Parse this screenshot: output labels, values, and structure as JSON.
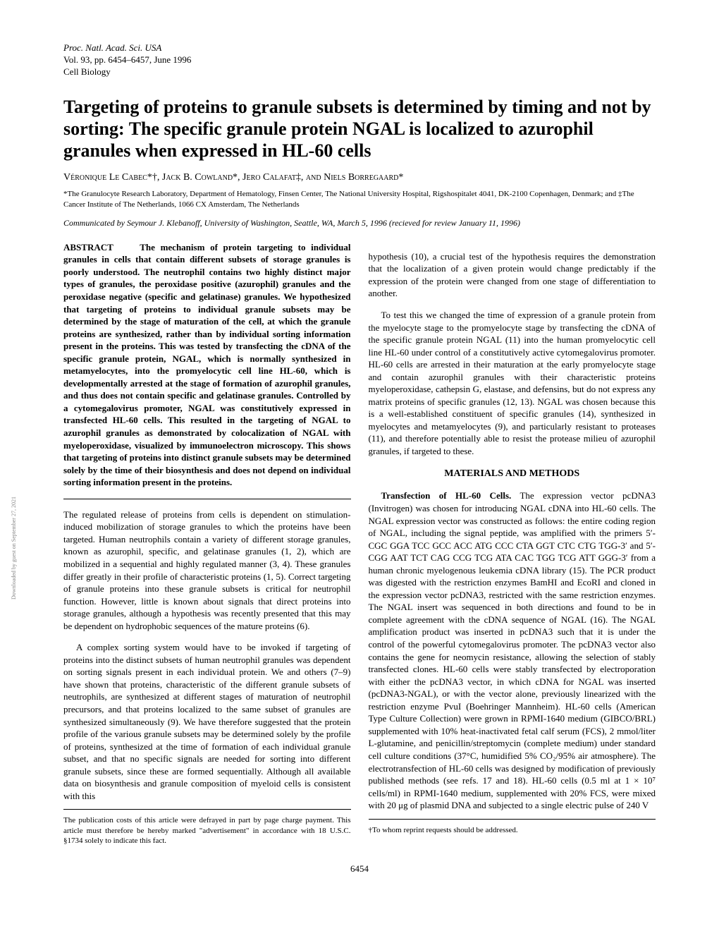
{
  "header": {
    "journal": "Proc. Natl. Acad. Sci. USA",
    "volume": "Vol. 93, pp. 6454–6457, June 1996",
    "section": "Cell Biology"
  },
  "title": "Targeting of proteins to granule subsets is determined by timing and not by sorting: The specific granule protein NGAL is localized to azurophil granules when expressed in HL-60 cells",
  "authors": "Véronique Le Cabec*†, Jack B. Cowland*, Jero Calafat‡, and Niels Borregaard*",
  "affiliations": "*The Granulocyte Research Laboratory, Department of Hematology, Finsen Center, The National University Hospital, Rigshospitalet 4041, DK-2100 Copenhagen, Denmark; and ‡The Cancer Institute of The Netherlands, 1066 CX Amsterdam, The Netherlands",
  "communicated": "Communicated by Seymour J. Klebanoff, University of Washington, Seattle, WA, March 5, 1996 (recieved for review January 11, 1996)",
  "abstract_label": "ABSTRACT",
  "abstract_text": "The mechanism of protein targeting to individual granules in cells that contain different subsets of storage granules is poorly understood. The neutrophil contains two highly distinct major types of granules, the peroxidase positive (azurophil) granules and the peroxidase negative (specific and gelatinase) granules. We hypothesized that targeting of proteins to individual granule subsets may be determined by the stage of maturation of the cell, at which the granule proteins are synthesized, rather than by individual sorting information present in the proteins. This was tested by transfecting the cDNA of the specific granule protein, NGAL, which is normally synthesized in metamyelocytes, into the promyelocytic cell line HL-60, which is developmentally arrested at the stage of formation of azurophil granules, and thus does not contain specific and gelatinase granules. Controlled by a cytomegalovirus promoter, NGAL was constitutively expressed in transfected HL-60 cells. This resulted in the targeting of NGAL to azurophil granules as demonstrated by colocalization of NGAL with myeloperoxidase, visualized by immunoelectron microscopy. This shows that targeting of proteins into distinct granule subsets may be determined solely by the time of their biosynthesis and does not depend on individual sorting information present in the proteins.",
  "col1_para1": "The regulated release of proteins from cells is dependent on stimulation-induced mobilization of storage granules to which the proteins have been targeted. Human neutrophils contain a variety of different storage granules, known as azurophil, specific, and gelatinase granules (1, 2), which are mobilized in a sequential and highly regulated manner (3, 4). These granules differ greatly in their profile of characteristic proteins (1, 5). Correct targeting of granule proteins into these granule subsets is critical for neutrophil function. However, little is known about signals that direct proteins into storage granules, although a hypothesis was recently presented that this may be dependent on hydrophobic sequences of the mature proteins (6).",
  "col1_para2": "A complex sorting system would have to be invoked if targeting of proteins into the distinct subsets of human neutrophil granules was dependent on sorting signals present in each individual protein. We and others (7–9) have shown that proteins, characteristic of the different granule subsets of neutrophils, are synthesized at different stages of maturation of neutrophil precursors, and that proteins localized to the same subset of granules are synthesized simultaneously (9). We have therefore suggested that the protein profile of the various granule subsets may be determined solely by the profile of proteins, synthesized at the time of formation of each individual granule subset, and that no specific signals are needed for sorting into different granule subsets, since these are formed sequentially. Although all available data on biosynthesis and granule composition of myeloid cells is consistent with this",
  "col1_footnote": "The publication costs of this article were defrayed in part by page charge payment. This article must therefore be hereby marked \"advertisement\" in accordance with 18 U.S.C. §1734 solely to indicate this fact.",
  "col2_para1": "hypothesis (10), a crucial test of the hypothesis requires the demonstration that the localization of a given protein would change predictably if the expression of the protein were changed from one stage of differentiation to another.",
  "col2_para2": "To test this we changed the time of expression of a granule protein from the myelocyte stage to the promyelocyte stage by transfecting the cDNA of the specific granule protein NGAL (11) into the human promyelocytic cell line HL-60 under control of a constitutively active cytomegalovirus promoter. HL-60 cells are arrested in their maturation at the early promyelocyte stage and contain azurophil granules with their characteristic proteins myeloperoxidase, cathepsin G, elastase, and defensins, but do not express any matrix proteins of specific granules (12, 13). NGAL was chosen because this is a well-established constituent of specific granules (14), synthesized in myelocytes and metamyelocytes (9), and particularly resistant to proteases (11), and therefore potentially able to resist the protease milieu of azurophil granules, if targeted to these.",
  "materials_heading": "MATERIALS AND METHODS",
  "methods_sub1": "Transfection of HL-60 Cells.",
  "methods_text": " The expression vector pcDNA3 (Invitrogen) was chosen for introducing NGAL cDNA into HL-60 cells. The NGAL expression vector was constructed as follows: the entire coding region of NGAL, including the signal peptide, was amplified with the primers 5′-CGC GGA TCC GCC ACC ATG CCC CTA GGT CTC CTG TGG-3′ and 5′-CGG AAT TCT CAG CCG TCG ATA CAC TGG TCG ATT GGG-3′ from a human chronic myelogenous leukemia cDNA library (15). The PCR product was digested with the restriction enzymes BamHI and EcoRI and cloned in the expression vector pcDNA3, restricted with the same restriction enzymes. The NGAL insert was sequenced in both directions and found to be in complete agreement with the cDNA sequence of NGAL (16). The NGAL amplification product was inserted in pcDNA3 such that it is under the control of the powerful cytomegalovirus promoter. The pcDNA3 vector also contains the gene for neomycin resistance, allowing the selection of stably transfected clones. HL-60 cells were stably transfected by electroporation with either the pcDNA3 vector, in which cDNA for NGAL was inserted (pcDNA3-NGAL), or with the vector alone, previously linearized with the restriction enzyme PvuI (Boehringer Mannheim). HL-60 cells (American Type Culture Collection) were grown in RPMI-1640 medium (GIBCO/BRL) supplemented with 10% heat-inactivated fetal calf serum (FCS), 2 mmol/liter L-glutamine, and penicillin/streptomycin (complete medium) under standard cell culture conditions (37°C, humidified 5% CO₂/95% air atmosphere). The electrotransfection of HL-60 cells was designed by modification of previously published methods (see refs. 17 and 18). HL-60 cells (0.5 ml at 1 × 10⁷ cells/ml) in RPMI-1640 medium, supplemented with 20% FCS, were mixed with 20 μg of plasmid DNA and subjected to a single electric pulse of 240 V",
  "col2_footnote": "†To whom reprint requests should be addressed.",
  "page_number": "6454",
  "side_text": "Downloaded by guest on September 27, 2021"
}
